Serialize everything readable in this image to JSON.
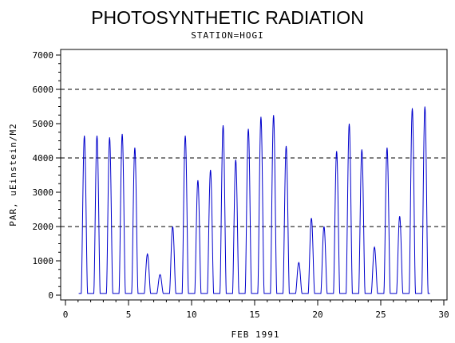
{
  "chart_data": {
    "type": "line",
    "title": "PHOTOSYNTHETIC RADIATION",
    "subtitle": "STATION=HOGI",
    "xlabel": "FEB 1991",
    "ylabel": "PAR, uEinstein/M2",
    "xlim": [
      0,
      30
    ],
    "ylim": [
      0,
      7000
    ],
    "x_ticks": [
      0,
      5,
      10,
      15,
      20,
      25,
      30
    ],
    "y_ticks": [
      0,
      1000,
      2000,
      3000,
      4000,
      5000,
      6000,
      7000
    ],
    "reference_lines": [
      2000,
      4000,
      6000
    ],
    "line_color": "#0000cc",
    "daily_peaks": [
      {
        "day": 1,
        "peak": 4650
      },
      {
        "day": 2,
        "peak": 4650
      },
      {
        "day": 3,
        "peak": 4600
      },
      {
        "day": 4,
        "peak": 4700
      },
      {
        "day": 5,
        "peak": 4300
      },
      {
        "day": 6,
        "peak": 1200
      },
      {
        "day": 7,
        "peak": 600
      },
      {
        "day": 8,
        "peak": 2000
      },
      {
        "day": 9,
        "peak": 4650
      },
      {
        "day": 10,
        "peak": 3350
      },
      {
        "day": 11,
        "peak": 3650
      },
      {
        "day": 12,
        "peak": 4950
      },
      {
        "day": 13,
        "peak": 3950
      },
      {
        "day": 14,
        "peak": 4850
      },
      {
        "day": 15,
        "peak": 5200
      },
      {
        "day": 16,
        "peak": 5250
      },
      {
        "day": 17,
        "peak": 4350
      },
      {
        "day": 18,
        "peak": 950
      },
      {
        "day": 19,
        "peak": 2250
      },
      {
        "day": 20,
        "peak": 2000
      },
      {
        "day": 21,
        "peak": 4200
      },
      {
        "day": 22,
        "peak": 5000
      },
      {
        "day": 23,
        "peak": 4250
      },
      {
        "day": 24,
        "peak": 1400
      },
      {
        "day": 25,
        "peak": 4300
      },
      {
        "day": 26,
        "peak": 2300
      },
      {
        "day": 27,
        "peak": 5450
      },
      {
        "day": 28,
        "peak": 5500
      }
    ]
  }
}
